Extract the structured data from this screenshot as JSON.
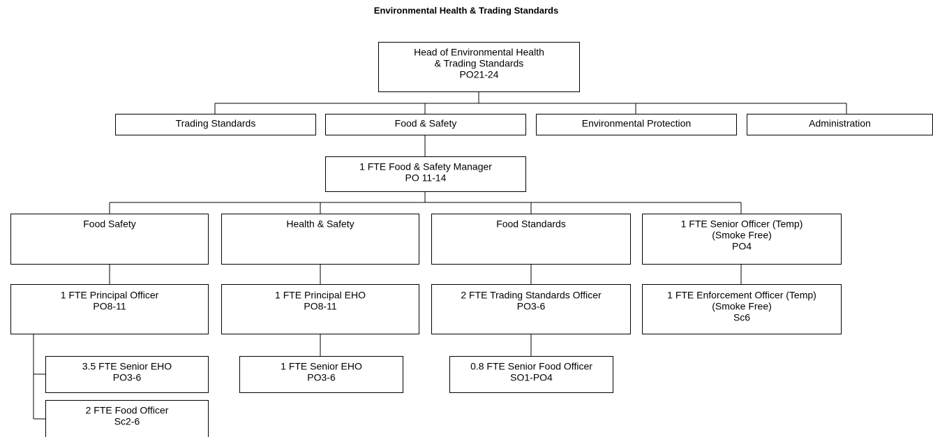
{
  "title": "Environmental Health & Trading Standards",
  "nodes": [
    {
      "lines": [
        "Head of Environmental Health",
        "& Trading Standards",
        "PO21-24"
      ]
    },
    {
      "lines": [
        "Trading Standards"
      ]
    },
    {
      "lines": [
        "Food & Safety"
      ]
    },
    {
      "lines": [
        "Environmental Protection"
      ]
    },
    {
      "lines": [
        "Administration"
      ]
    },
    {
      "lines": [
        "1 FTE Food & Safety Manager",
        "PO 11-14"
      ]
    },
    {
      "lines": [
        "Food Safety"
      ]
    },
    {
      "lines": [
        "Health & Safety"
      ]
    },
    {
      "lines": [
        "Food Standards"
      ]
    },
    {
      "lines": [
        "1 FTE Senior Officer (Temp)",
        "(Smoke Free)",
        "PO4"
      ]
    },
    {
      "lines": [
        "1 FTE Principal Officer",
        "PO8-11"
      ]
    },
    {
      "lines": [
        "1 FTE Principal EHO",
        "PO8-11"
      ]
    },
    {
      "lines": [
        "2 FTE Trading Standards Officer",
        "PO3-6"
      ]
    },
    {
      "lines": [
        "1 FTE Enforcement Officer (Temp)",
        "(Smoke Free)",
        "Sc6"
      ]
    },
    {
      "lines": [
        "3.5 FTE Senior EHO",
        "PO3-6"
      ]
    },
    {
      "lines": [
        "2 FTE Food Officer",
        "Sc2-6"
      ]
    },
    {
      "lines": [
        "1 FTE Senior EHO",
        "PO3-6"
      ]
    },
    {
      "lines": [
        "0.8 FTE Senior Food Officer",
        "SO1-PO4"
      ]
    }
  ]
}
